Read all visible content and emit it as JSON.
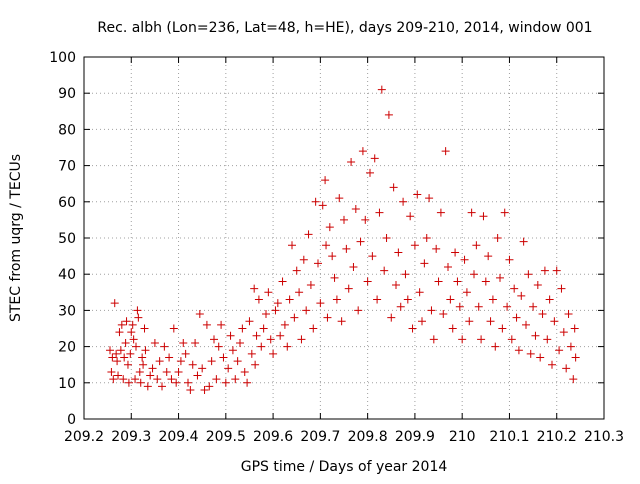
{
  "chart_data": {
    "type": "scatter",
    "title": "Rec. albh (Lon=236, Lat=48, h=HE), days 209-210, 2014, window 001",
    "xlabel": "GPS time / Days of year 2014",
    "ylabel": "STEC from uqrg / TECUs",
    "xlim": [
      209.2,
      210.3
    ],
    "ylim": [
      0,
      100
    ],
    "xticks": [
      "209.2",
      "209.3",
      "209.4",
      "209.5",
      "209.6",
      "209.7",
      "209.8",
      "209.9",
      "210",
      "210.1",
      "210.2",
      "210.3"
    ],
    "yticks": [
      "0",
      "10",
      "20",
      "30",
      "40",
      "50",
      "60",
      "70",
      "80",
      "90",
      "100"
    ],
    "grid": true,
    "legend": "none",
    "marker": "plus",
    "color": "#cc0000",
    "points": [
      [
        209.255,
        19
      ],
      [
        209.258,
        13
      ],
      [
        209.26,
        17
      ],
      [
        209.262,
        11
      ],
      [
        209.265,
        32
      ],
      [
        209.268,
        18
      ],
      [
        209.27,
        16
      ],
      [
        209.272,
        12
      ],
      [
        209.275,
        24
      ],
      [
        209.278,
        19
      ],
      [
        209.28,
        26
      ],
      [
        209.283,
        11
      ],
      [
        209.285,
        17
      ],
      [
        209.288,
        21
      ],
      [
        209.29,
        27
      ],
      [
        209.293,
        15
      ],
      [
        209.295,
        10
      ],
      [
        209.298,
        18
      ],
      [
        209.3,
        24
      ],
      [
        209.303,
        26
      ],
      [
        209.305,
        22
      ],
      [
        209.308,
        11
      ],
      [
        209.31,
        20
      ],
      [
        209.313,
        30
      ],
      [
        209.315,
        28
      ],
      [
        209.318,
        13
      ],
      [
        209.32,
        10
      ],
      [
        209.323,
        17
      ],
      [
        209.325,
        15
      ],
      [
        209.328,
        25
      ],
      [
        209.33,
        19
      ],
      [
        209.335,
        9
      ],
      [
        209.34,
        12
      ],
      [
        209.345,
        14
      ],
      [
        209.35,
        21
      ],
      [
        209.355,
        11
      ],
      [
        209.36,
        16
      ],
      [
        209.365,
        9
      ],
      [
        209.37,
        20
      ],
      [
        209.375,
        13
      ],
      [
        209.38,
        17
      ],
      [
        209.385,
        11
      ],
      [
        209.39,
        25
      ],
      [
        209.395,
        10
      ],
      [
        209.4,
        13
      ],
      [
        209.405,
        16
      ],
      [
        209.41,
        21
      ],
      [
        209.415,
        18
      ],
      [
        209.42,
        10
      ],
      [
        209.425,
        8
      ],
      [
        209.43,
        15
      ],
      [
        209.435,
        21
      ],
      [
        209.44,
        12
      ],
      [
        209.445,
        29
      ],
      [
        209.45,
        14
      ],
      [
        209.455,
        8
      ],
      [
        209.46,
        26
      ],
      [
        209.465,
        9
      ],
      [
        209.47,
        16
      ],
      [
        209.475,
        22
      ],
      [
        209.48,
        11
      ],
      [
        209.485,
        20
      ],
      [
        209.49,
        26
      ],
      [
        209.495,
        17
      ],
      [
        209.5,
        10
      ],
      [
        209.505,
        14
      ],
      [
        209.51,
        23
      ],
      [
        209.515,
        19
      ],
      [
        209.52,
        11
      ],
      [
        209.525,
        16
      ],
      [
        209.53,
        21
      ],
      [
        209.535,
        25
      ],
      [
        209.54,
        13
      ],
      [
        209.545,
        10
      ],
      [
        209.55,
        27
      ],
      [
        209.555,
        18
      ],
      [
        209.56,
        36
      ],
      [
        209.562,
        15
      ],
      [
        209.565,
        23
      ],
      [
        209.57,
        33
      ],
      [
        209.575,
        20
      ],
      [
        209.58,
        25
      ],
      [
        209.585,
        29
      ],
      [
        209.59,
        35
      ],
      [
        209.595,
        22
      ],
      [
        209.6,
        18
      ],
      [
        209.605,
        30
      ],
      [
        209.61,
        32
      ],
      [
        209.615,
        23
      ],
      [
        209.62,
        38
      ],
      [
        209.625,
        26
      ],
      [
        209.63,
        20
      ],
      [
        209.635,
        33
      ],
      [
        209.64,
        48
      ],
      [
        209.645,
        28
      ],
      [
        209.65,
        41
      ],
      [
        209.655,
        35
      ],
      [
        209.66,
        22
      ],
      [
        209.665,
        44
      ],
      [
        209.67,
        30
      ],
      [
        209.675,
        51
      ],
      [
        209.68,
        37
      ],
      [
        209.685,
        25
      ],
      [
        209.69,
        60
      ],
      [
        209.695,
        43
      ],
      [
        209.7,
        32
      ],
      [
        209.705,
        59
      ],
      [
        209.71,
        66
      ],
      [
        209.712,
        48
      ],
      [
        209.715,
        28
      ],
      [
        209.72,
        53
      ],
      [
        209.725,
        45
      ],
      [
        209.73,
        39
      ],
      [
        209.735,
        33
      ],
      [
        209.74,
        61
      ],
      [
        209.745,
        27
      ],
      [
        209.75,
        55
      ],
      [
        209.755,
        47
      ],
      [
        209.76,
        36
      ],
      [
        209.765,
        71
      ],
      [
        209.77,
        42
      ],
      [
        209.775,
        58
      ],
      [
        209.78,
        30
      ],
      [
        209.785,
        49
      ],
      [
        209.79,
        74
      ],
      [
        209.795,
        55
      ],
      [
        209.8,
        38
      ],
      [
        209.805,
        68
      ],
      [
        209.81,
        45
      ],
      [
        209.815,
        72
      ],
      [
        209.82,
        33
      ],
      [
        209.825,
        57
      ],
      [
        209.83,
        91
      ],
      [
        209.835,
        41
      ],
      [
        209.84,
        50
      ],
      [
        209.845,
        84
      ],
      [
        209.85,
        28
      ],
      [
        209.855,
        64
      ],
      [
        209.86,
        37
      ],
      [
        209.865,
        46
      ],
      [
        209.87,
        31
      ],
      [
        209.875,
        60
      ],
      [
        209.88,
        40
      ],
      [
        209.885,
        33
      ],
      [
        209.89,
        56
      ],
      [
        209.895,
        25
      ],
      [
        209.9,
        48
      ],
      [
        209.905,
        62
      ],
      [
        209.91,
        35
      ],
      [
        209.915,
        27
      ],
      [
        209.92,
        43
      ],
      [
        209.925,
        50
      ],
      [
        209.93,
        61
      ],
      [
        209.935,
        30
      ],
      [
        209.94,
        22
      ],
      [
        209.945,
        47
      ],
      [
        209.95,
        38
      ],
      [
        209.955,
        57
      ],
      [
        209.96,
        29
      ],
      [
        209.965,
        74
      ],
      [
        209.97,
        42
      ],
      [
        209.975,
        33
      ],
      [
        209.98,
        25
      ],
      [
        209.985,
        46
      ],
      [
        209.99,
        38
      ],
      [
        209.995,
        31
      ],
      [
        210.0,
        22
      ],
      [
        210.005,
        44
      ],
      [
        210.01,
        35
      ],
      [
        210.015,
        27
      ],
      [
        210.02,
        57
      ],
      [
        210.025,
        40
      ],
      [
        210.03,
        48
      ],
      [
        210.035,
        31
      ],
      [
        210.04,
        22
      ],
      [
        210.045,
        56
      ],
      [
        210.05,
        38
      ],
      [
        210.055,
        45
      ],
      [
        210.06,
        27
      ],
      [
        210.065,
        33
      ],
      [
        210.07,
        20
      ],
      [
        210.075,
        50
      ],
      [
        210.08,
        39
      ],
      [
        210.085,
        25
      ],
      [
        210.09,
        57
      ],
      [
        210.095,
        31
      ],
      [
        210.1,
        44
      ],
      [
        210.105,
        22
      ],
      [
        210.11,
        36
      ],
      [
        210.115,
        28
      ],
      [
        210.12,
        19
      ],
      [
        210.125,
        34
      ],
      [
        210.13,
        49
      ],
      [
        210.135,
        26
      ],
      [
        210.14,
        40
      ],
      [
        210.145,
        18
      ],
      [
        210.15,
        31
      ],
      [
        210.155,
        23
      ],
      [
        210.16,
        37
      ],
      [
        210.165,
        17
      ],
      [
        210.17,
        29
      ],
      [
        210.175,
        41
      ],
      [
        210.18,
        22
      ],
      [
        210.185,
        33
      ],
      [
        210.19,
        15
      ],
      [
        210.195,
        27
      ],
      [
        210.2,
        41
      ],
      [
        210.205,
        19
      ],
      [
        210.21,
        36
      ],
      [
        210.215,
        24
      ],
      [
        210.22,
        14
      ],
      [
        210.225,
        29
      ],
      [
        210.23,
        20
      ],
      [
        210.235,
        11
      ],
      [
        210.238,
        25
      ],
      [
        210.24,
        17
      ]
    ]
  }
}
